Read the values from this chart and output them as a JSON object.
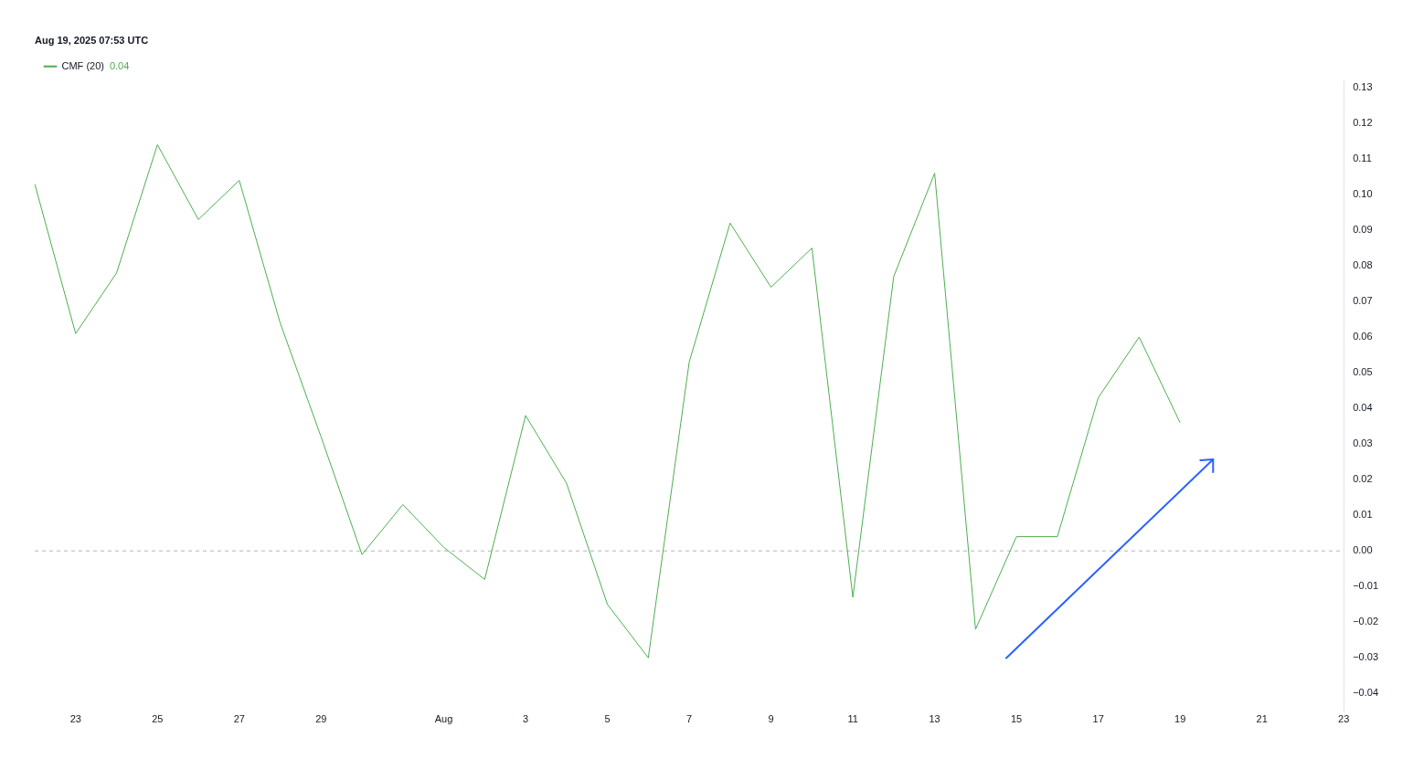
{
  "chart_data": {
    "type": "line",
    "title": "Aug 19, 2025 07:53 UTC",
    "x": [
      "2025-07-22",
      "2025-07-23",
      "2025-07-24",
      "2025-07-25",
      "2025-07-26",
      "2025-07-27",
      "2025-07-28",
      "2025-07-29",
      "2025-07-30",
      "2025-07-31",
      "2025-08-01",
      "2025-08-02",
      "2025-08-03",
      "2025-08-04",
      "2025-08-05",
      "2025-08-06",
      "2025-08-07",
      "2025-08-08",
      "2025-08-09",
      "2025-08-10",
      "2025-08-11",
      "2025-08-12",
      "2025-08-13",
      "2025-08-14",
      "2025-08-15",
      "2025-08-16",
      "2025-08-17",
      "2025-08-18",
      "2025-08-19"
    ],
    "series": [
      {
        "name": "CMF (20)",
        "color": "#4caf50",
        "values": [
          0.103,
          0.061,
          0.078,
          0.114,
          0.093,
          0.104,
          0.064,
          0.032,
          -0.001,
          0.013,
          0.001,
          -0.008,
          0.038,
          0.019,
          -0.015,
          -0.03,
          0.053,
          0.092,
          0.074,
          0.085,
          -0.013,
          0.077,
          0.106,
          -0.022,
          0.004,
          0.004,
          0.043,
          0.06,
          0.036
        ]
      }
    ],
    "annotations": [
      "0.04"
    ],
    "xlim": [
      "2025-07-22",
      "2025-08-23"
    ],
    "xticks": [
      {
        "value": "2025-07-23",
        "label": "23"
      },
      {
        "value": "2025-07-25",
        "label": "25"
      },
      {
        "value": "2025-07-27",
        "label": "27"
      },
      {
        "value": "2025-07-29",
        "label": "29"
      },
      {
        "value": "2025-08-01",
        "label": "Aug"
      },
      {
        "value": "2025-08-03",
        "label": "3"
      },
      {
        "value": "2025-08-05",
        "label": "5"
      },
      {
        "value": "2025-08-07",
        "label": "7"
      },
      {
        "value": "2025-08-09",
        "label": "9"
      },
      {
        "value": "2025-08-11",
        "label": "11"
      },
      {
        "value": "2025-08-13",
        "label": "13"
      },
      {
        "value": "2025-08-15",
        "label": "15"
      },
      {
        "value": "2025-08-17",
        "label": "17"
      },
      {
        "value": "2025-08-19",
        "label": "19"
      },
      {
        "value": "2025-08-21",
        "label": "21"
      },
      {
        "value": "2025-08-23",
        "label": "23"
      }
    ],
    "ylim": [
      -0.045,
      0.132
    ],
    "yticks": [
      {
        "value": -0.04,
        "label": "−0.04"
      },
      {
        "value": -0.03,
        "label": "−0.03"
      },
      {
        "value": -0.02,
        "label": "−0.02"
      },
      {
        "value": -0.01,
        "label": "−0.01"
      },
      {
        "value": 0,
        "label": "0.00"
      },
      {
        "value": 0.01,
        "label": "0.01"
      },
      {
        "value": 0.02,
        "label": "0.02"
      },
      {
        "value": 0.03,
        "label": "0.03"
      },
      {
        "value": 0.04,
        "label": "0.04"
      },
      {
        "value": 0.05,
        "label": "0.05"
      },
      {
        "value": 0.06,
        "label": "0.06"
      },
      {
        "value": 0.07,
        "label": "0.07"
      },
      {
        "value": 0.08,
        "label": "0.08"
      },
      {
        "value": 0.09,
        "label": "0.09"
      },
      {
        "value": 0.1,
        "label": "0.10"
      },
      {
        "value": 0.11,
        "label": "0.11"
      },
      {
        "value": 0.12,
        "label": "0.12"
      },
      {
        "value": 0.13,
        "label": "0.13"
      }
    ],
    "ref_lines": [
      {
        "axis": "y",
        "value": 0,
        "color": "#b2b5be",
        "line_style": "dashed"
      }
    ],
    "grid": false,
    "legend": "top left",
    "marker": "none",
    "line_style": "solid"
  }
}
